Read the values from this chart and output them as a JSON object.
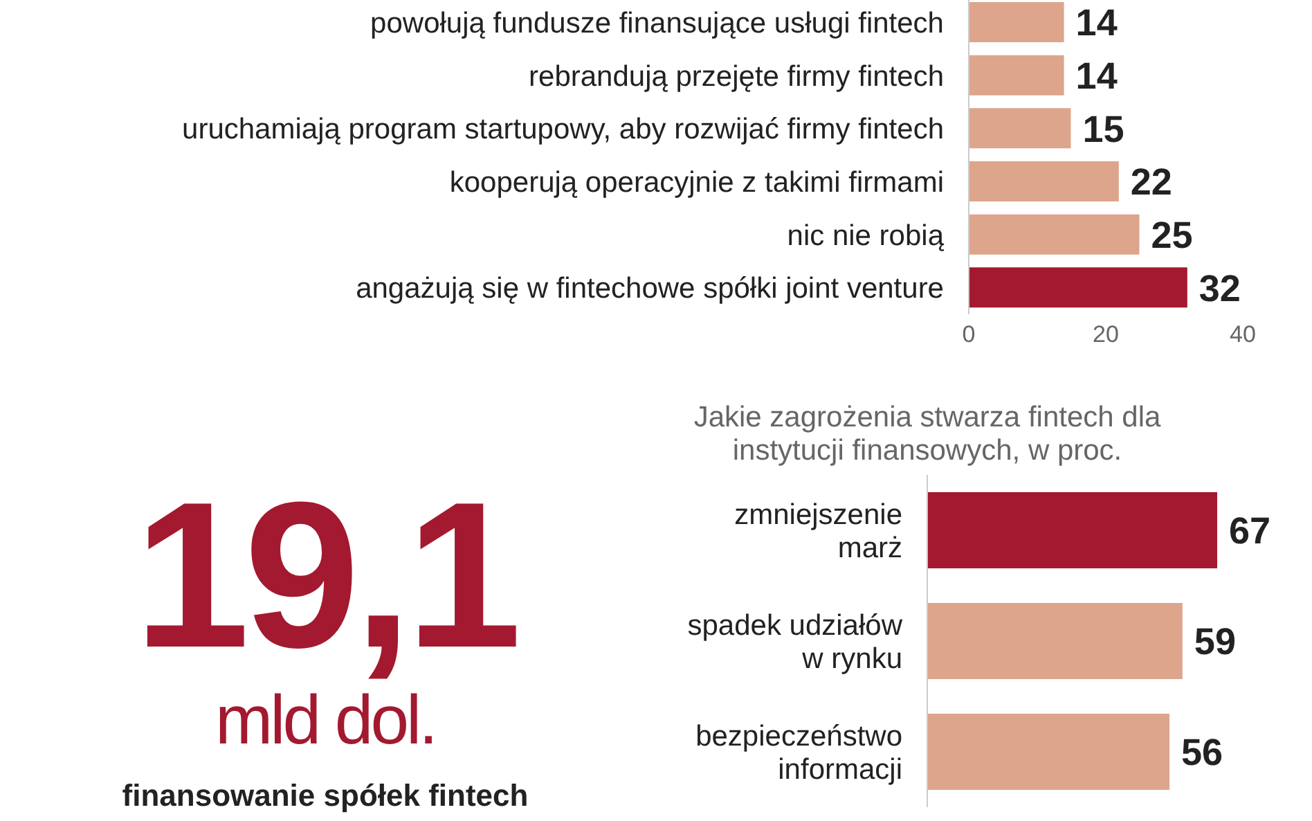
{
  "chart_data": [
    {
      "type": "bar",
      "orientation": "horizontal",
      "categories": [
        "powołują fundusze finansujące usługi fintech",
        "rebrandują przejęte firmy fintech",
        "uruchamiają program startupowy, aby rozwijać firmy fintech",
        "kooperują operacyjnie z takimi firmami",
        "nic nie robią",
        "angażują się w fintechowe spółki joint venture"
      ],
      "values": [
        14,
        14,
        15,
        22,
        25,
        32
      ],
      "colors": [
        "#dda58c",
        "#dda58c",
        "#dda58c",
        "#dda58c",
        "#dda58c",
        "#a3192f"
      ],
      "xlim": [
        0,
        40
      ],
      "xticks": [
        0,
        20,
        40
      ],
      "data_labels": true
    },
    {
      "type": "other",
      "title": "19,1",
      "subtitle": "mld dol.",
      "annotations": [
        "finansowanie spółek fintech"
      ]
    },
    {
      "type": "bar",
      "orientation": "horizontal",
      "title": "Jakie zagrożenia stwarza fintech dla instytucji finansowych, w proc.",
      "categories": [
        "zmniejszenie marż",
        "spadek udziałów w rynku",
        "bezpieczeństwo informacji"
      ],
      "values": [
        67,
        59,
        56
      ],
      "colors": [
        "#a3192f",
        "#dda58c",
        "#dda58c"
      ],
      "data_labels": true,
      "tick_labels": false
    }
  ]
}
